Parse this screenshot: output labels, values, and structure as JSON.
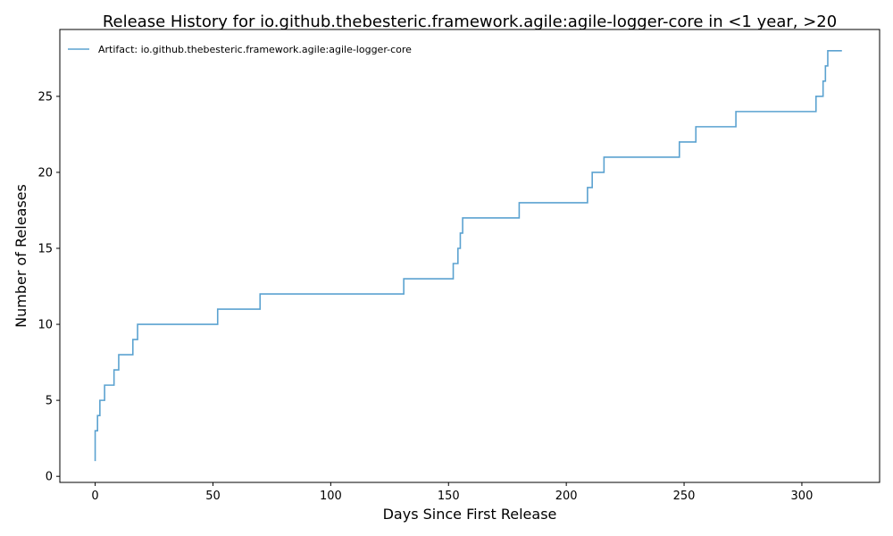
{
  "chart_data": {
    "type": "line",
    "title": "Release History for io.github.thebesteric.framework.agile:agile-logger-core in <1 year, >20",
    "xlabel": "Days Since First Release",
    "ylabel": "Number of Releases",
    "xlim": [
      -15,
      333
    ],
    "ylim": [
      -0.4,
      29.4
    ],
    "xticks": [
      0,
      50,
      100,
      150,
      200,
      250,
      300
    ],
    "yticks": [
      0,
      5,
      10,
      15,
      20,
      25
    ],
    "grid": false,
    "legend_position": "top-left",
    "line_color": "#5ba2d0",
    "series": [
      {
        "name": "Artifact: io.github.thebesteric.framework.agile:agile-logger-core",
        "step": "post",
        "x": [
          0,
          0,
          0,
          1,
          2,
          4,
          8,
          10,
          16,
          18,
          52,
          70,
          131,
          152,
          154,
          155,
          156,
          180,
          209,
          211,
          216,
          248,
          255,
          272,
          306,
          309,
          310,
          311,
          317
        ],
        "y": [
          1,
          2,
          3,
          4,
          5,
          6,
          7,
          8,
          9,
          10,
          11,
          12,
          13,
          14,
          15,
          16,
          17,
          18,
          19,
          20,
          21,
          22,
          23,
          24,
          25,
          26,
          27,
          28,
          28
        ]
      }
    ]
  }
}
